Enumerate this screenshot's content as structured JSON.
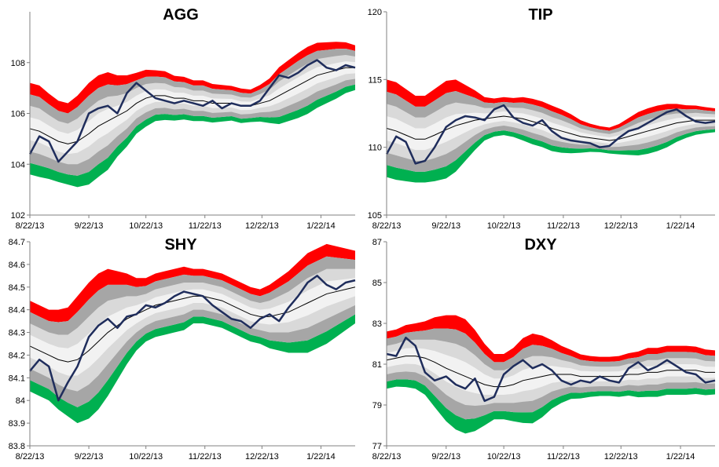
{
  "chart_data": [
    {
      "type": "area",
      "title": "AGG",
      "ylim": [
        102,
        110
      ],
      "yticks": [
        102,
        104,
        106,
        108
      ],
      "xticks": [
        "8/22/13",
        "9/22/13",
        "10/22/13",
        "11/22/13",
        "12/22/13",
        "1/22/14"
      ],
      "colors": {
        "upper_outer": "#ff0000",
        "lower_outer": "#00b050",
        "band2": "#a6a6a6",
        "band1": "#d9d9d9",
        "band0": "#f2f2f2",
        "mean": "#000000",
        "price": "#1f2d5c"
      },
      "x_days": [
        0,
        5,
        10,
        15,
        20,
        25,
        31,
        36,
        41,
        46,
        51,
        56,
        61,
        66,
        71,
        76,
        81,
        86,
        91,
        96,
        101,
        106,
        111,
        116,
        121,
        126,
        131,
        136,
        141,
        146,
        151,
        156,
        161,
        166,
        171
      ],
      "series": [
        {
          "name": "Price",
          "values": [
            104.4,
            105.1,
            104.9,
            104.1,
            104.5,
            104.9,
            106.0,
            106.2,
            106.3,
            106.0,
            106.8,
            107.2,
            106.9,
            106.6,
            106.5,
            106.4,
            106.5,
            106.4,
            106.3,
            106.5,
            106.2,
            106.4,
            106.3,
            106.3,
            106.5,
            107.0,
            107.5,
            107.4,
            107.6,
            107.9,
            108.1,
            107.8,
            107.7,
            107.9,
            107.8
          ]
        },
        {
          "name": "Mean",
          "values": [
            105.4,
            105.3,
            105.1,
            104.9,
            104.8,
            104.9,
            105.2,
            105.5,
            105.7,
            105.9,
            106.1,
            106.4,
            106.6,
            106.7,
            106.7,
            106.6,
            106.6,
            106.5,
            106.5,
            106.4,
            106.4,
            106.4,
            106.3,
            106.3,
            106.4,
            106.5,
            106.7,
            106.9,
            107.1,
            107.3,
            107.5,
            107.6,
            107.7,
            107.8,
            107.8
          ]
        },
        {
          "name": "Spread",
          "values": [
            0.45,
            0.45,
            0.42,
            0.4,
            0.4,
            0.45,
            0.5,
            0.5,
            0.48,
            0.4,
            0.35,
            0.3,
            0.28,
            0.25,
            0.24,
            0.22,
            0.21,
            0.2,
            0.2,
            0.19,
            0.18,
            0.17,
            0.17,
            0.16,
            0.18,
            0.22,
            0.28,
            0.3,
            0.32,
            0.33,
            0.32,
            0.3,
            0.28,
            0.25,
            0.22
          ]
        }
      ]
    },
    {
      "type": "area",
      "title": "TIP",
      "ylim": [
        105,
        120
      ],
      "yticks": [
        105,
        110,
        115,
        120
      ],
      "xticks": [
        "8/22/13",
        "9/22/13",
        "10/22/13",
        "11/22/13",
        "12/22/13",
        "1/22/14"
      ],
      "colors": {
        "upper_outer": "#ff0000",
        "lower_outer": "#00b050",
        "band2": "#a6a6a6",
        "band1": "#d9d9d9",
        "band0": "#f2f2f2",
        "mean": "#000000",
        "price": "#1f2d5c"
      },
      "x_days": [
        0,
        5,
        10,
        15,
        20,
        25,
        31,
        36,
        41,
        46,
        51,
        56,
        61,
        66,
        71,
        76,
        81,
        86,
        91,
        96,
        101,
        106,
        111,
        116,
        121,
        126,
        131,
        136,
        141,
        146,
        151,
        156,
        161,
        166,
        171
      ],
      "series": [
        {
          "name": "Price",
          "values": [
            109.5,
            110.8,
            110.4,
            108.8,
            109.0,
            110.0,
            111.5,
            112.0,
            112.3,
            112.2,
            112.0,
            112.8,
            113.1,
            112.2,
            111.8,
            111.6,
            112.0,
            111.2,
            110.7,
            110.5,
            110.4,
            110.3,
            110.0,
            110.1,
            110.7,
            111.2,
            111.4,
            111.8,
            112.2,
            112.6,
            112.8,
            112.3,
            111.9,
            111.8,
            111.9
          ]
        },
        {
          "name": "Mean",
          "values": [
            111.4,
            111.2,
            110.9,
            110.6,
            110.6,
            110.9,
            111.3,
            111.6,
            111.8,
            112.0,
            112.1,
            112.2,
            112.3,
            112.2,
            112.1,
            111.9,
            111.7,
            111.4,
            111.2,
            111.0,
            110.8,
            110.7,
            110.6,
            110.5,
            110.6,
            110.8,
            111.0,
            111.2,
            111.4,
            111.6,
            111.8,
            111.9,
            112.0,
            112.0,
            112.0
          ]
        },
        {
          "name": "Spread",
          "values": [
            0.9,
            0.9,
            0.85,
            0.8,
            0.8,
            0.85,
            0.9,
            0.85,
            0.7,
            0.55,
            0.4,
            0.35,
            0.35,
            0.36,
            0.4,
            0.42,
            0.42,
            0.42,
            0.4,
            0.36,
            0.3,
            0.26,
            0.24,
            0.24,
            0.28,
            0.34,
            0.4,
            0.42,
            0.42,
            0.4,
            0.35,
            0.3,
            0.27,
            0.24,
            0.22
          ]
        }
      ]
    },
    {
      "type": "area",
      "title": "SHY",
      "ylim": [
        83.8,
        84.7
      ],
      "yticks": [
        83.8,
        83.9,
        84,
        84.1,
        84.2,
        84.3,
        84.4,
        84.5,
        84.6,
        84.7
      ],
      "ytick_labels": [
        "83.8",
        "83.9",
        "84",
        "84.1",
        "84.2",
        "84.3",
        "84.4",
        "84.5",
        "84.6",
        "84.7"
      ],
      "xticks": [
        "8/22/13",
        "9/22/13",
        "10/22/13",
        "11/22/13",
        "12/22/13",
        "1/22/14"
      ],
      "colors": {
        "upper_outer": "#ff0000",
        "lower_outer": "#00b050",
        "band2": "#a6a6a6",
        "band1": "#d9d9d9",
        "band0": "#f2f2f2",
        "mean": "#000000",
        "price": "#1f2d5c"
      },
      "x_days": [
        0,
        5,
        10,
        15,
        20,
        25,
        31,
        36,
        41,
        46,
        51,
        56,
        61,
        66,
        71,
        76,
        81,
        86,
        91,
        96,
        101,
        106,
        111,
        116,
        121,
        126,
        131,
        136,
        141,
        146,
        151,
        156,
        161,
        166,
        171
      ],
      "series": [
        {
          "name": "Price",
          "values": [
            84.13,
            84.18,
            84.15,
            84.0,
            84.08,
            84.15,
            84.28,
            84.33,
            84.36,
            84.32,
            84.37,
            84.38,
            84.42,
            84.41,
            84.43,
            84.46,
            84.48,
            84.47,
            84.46,
            84.42,
            84.39,
            84.36,
            84.35,
            84.32,
            84.36,
            84.38,
            84.35,
            84.41,
            84.46,
            84.52,
            84.55,
            84.51,
            84.49,
            84.52,
            84.53
          ]
        },
        {
          "name": "Mean",
          "values": [
            84.24,
            84.22,
            84.2,
            84.18,
            84.17,
            84.18,
            84.22,
            84.26,
            84.3,
            84.33,
            84.36,
            84.38,
            84.4,
            84.42,
            84.43,
            84.44,
            84.45,
            84.46,
            84.46,
            84.45,
            84.44,
            84.42,
            84.4,
            84.38,
            84.37,
            84.37,
            84.38,
            84.39,
            84.41,
            84.43,
            84.45,
            84.47,
            84.48,
            84.49,
            84.5
          ]
        },
        {
          "name": "Spread",
          "values": [
            0.05,
            0.05,
            0.05,
            0.055,
            0.06,
            0.07,
            0.075,
            0.075,
            0.07,
            0.06,
            0.05,
            0.04,
            0.035,
            0.035,
            0.035,
            0.035,
            0.035,
            0.03,
            0.03,
            0.03,
            0.03,
            0.03,
            0.03,
            0.03,
            0.03,
            0.035,
            0.04,
            0.045,
            0.05,
            0.055,
            0.055,
            0.055,
            0.05,
            0.045,
            0.04
          ]
        }
      ]
    },
    {
      "type": "area",
      "title": "DXY",
      "ylim": [
        77,
        87
      ],
      "yticks": [
        77,
        79,
        81,
        83,
        85,
        87
      ],
      "xticks": [
        "8/22/13",
        "9/22/13",
        "10/22/13",
        "11/22/13",
        "12/22/13",
        "1/22/14"
      ],
      "colors": {
        "upper_outer": "#ff0000",
        "lower_outer": "#00b050",
        "band2": "#a6a6a6",
        "band1": "#d9d9d9",
        "band0": "#f2f2f2",
        "mean": "#000000",
        "price": "#1f2d5c"
      },
      "x_days": [
        0,
        5,
        10,
        15,
        20,
        25,
        31,
        36,
        41,
        46,
        51,
        56,
        61,
        66,
        71,
        76,
        81,
        86,
        91,
        96,
        101,
        106,
        111,
        116,
        121,
        126,
        131,
        136,
        141,
        146,
        151,
        156,
        161,
        166,
        171
      ],
      "series": [
        {
          "name": "Price",
          "values": [
            81.5,
            81.4,
            82.3,
            81.9,
            80.6,
            80.2,
            80.4,
            80.0,
            79.8,
            80.3,
            79.2,
            79.4,
            80.5,
            80.9,
            81.2,
            80.8,
            81.0,
            80.7,
            80.2,
            80.0,
            80.2,
            80.1,
            80.4,
            80.2,
            80.1,
            80.8,
            81.1,
            80.7,
            80.9,
            81.2,
            80.9,
            80.6,
            80.5,
            80.1,
            80.2
          ]
        },
        {
          "name": "Mean",
          "values": [
            81.2,
            81.3,
            81.4,
            81.4,
            81.3,
            81.1,
            80.8,
            80.6,
            80.4,
            80.2,
            80.0,
            79.9,
            79.9,
            80.0,
            80.2,
            80.3,
            80.4,
            80.5,
            80.5,
            80.5,
            80.4,
            80.4,
            80.4,
            80.4,
            80.4,
            80.5,
            80.5,
            80.6,
            80.6,
            80.7,
            80.7,
            80.7,
            80.7,
            80.6,
            80.6
          ]
        },
        {
          "name": "Spread",
          "values": [
            0.35,
            0.35,
            0.38,
            0.4,
            0.45,
            0.55,
            0.65,
            0.7,
            0.7,
            0.62,
            0.5,
            0.4,
            0.4,
            0.45,
            0.52,
            0.55,
            0.5,
            0.42,
            0.35,
            0.3,
            0.27,
            0.25,
            0.24,
            0.24,
            0.25,
            0.26,
            0.28,
            0.3,
            0.3,
            0.3,
            0.3,
            0.3,
            0.29,
            0.28,
            0.27
          ]
        }
      ]
    }
  ]
}
